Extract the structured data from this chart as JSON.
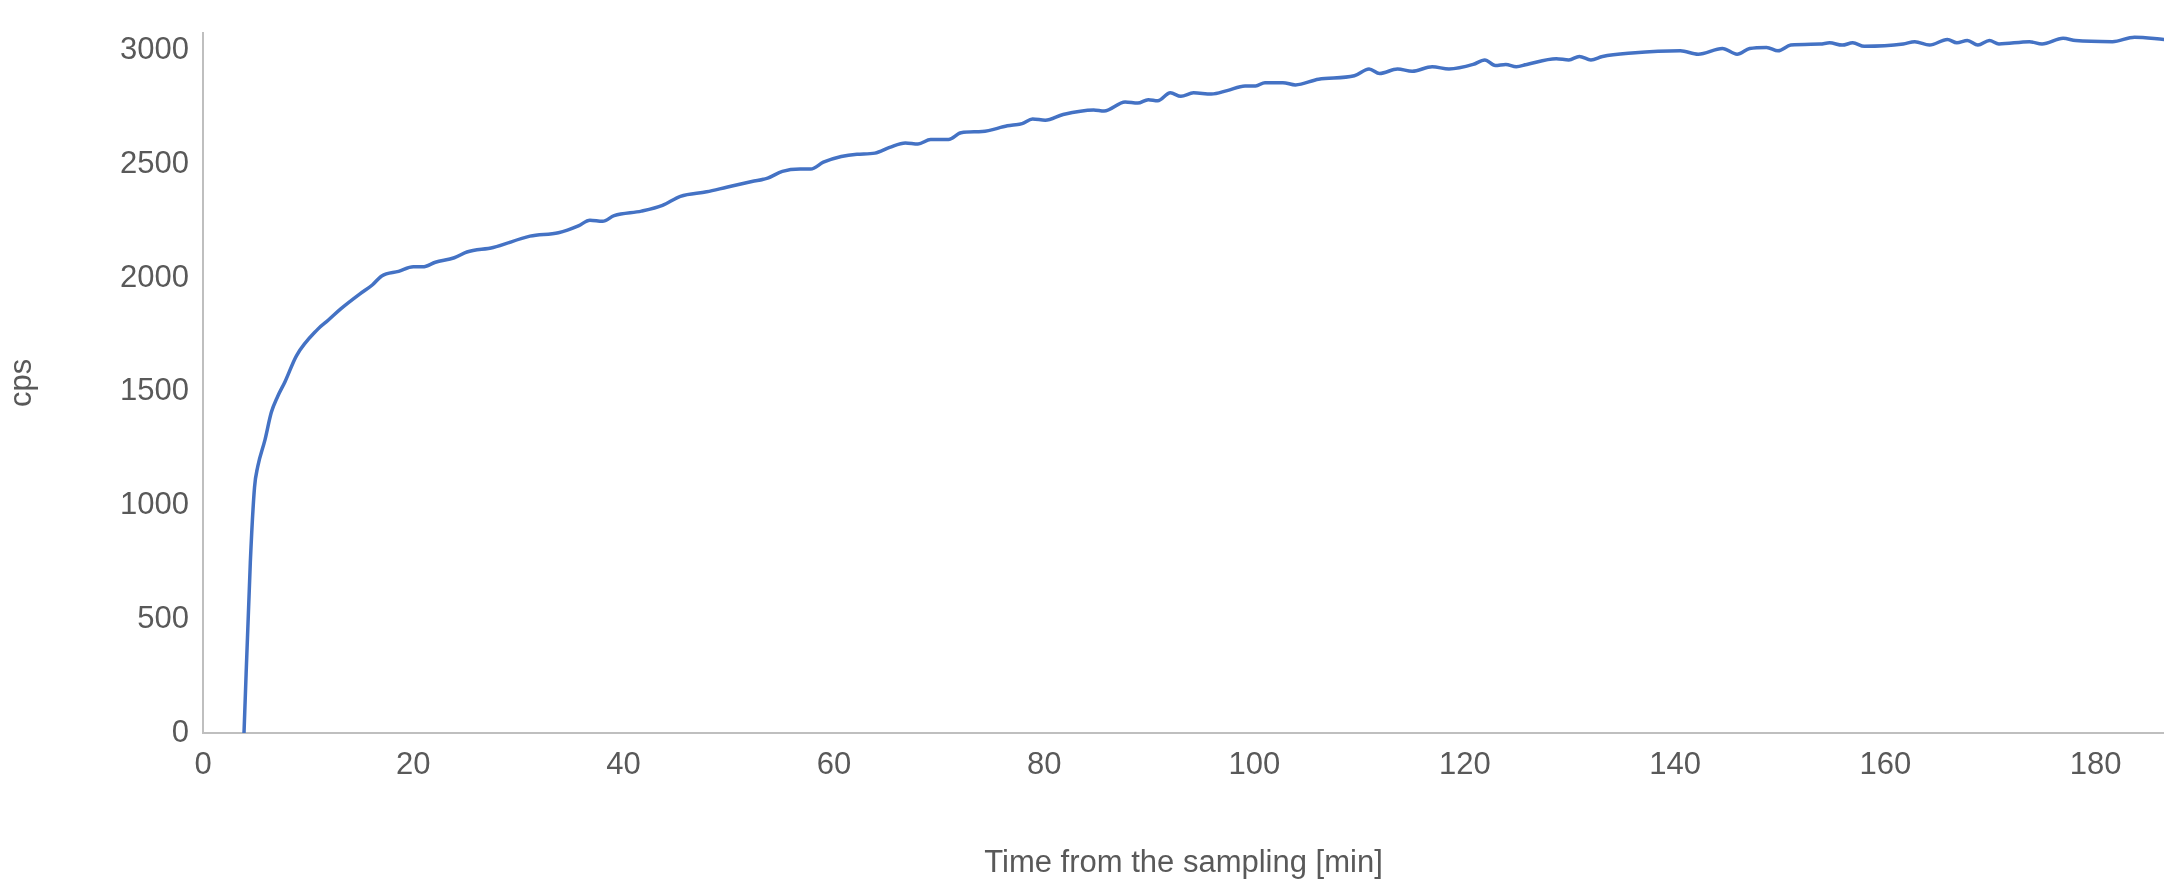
{
  "chart_data": {
    "type": "line",
    "xlabel": "Time from the sampling [min]",
    "ylabel": "cps",
    "xlim": [
      0,
      186.5
    ],
    "xticks": [
      0,
      20,
      40,
      60,
      80,
      100,
      120,
      140,
      160,
      180
    ],
    "ylim": [
      0,
      3080
    ],
    "yticks": [
      0,
      500,
      1000,
      1500,
      2000,
      2500,
      3000
    ],
    "grid": false,
    "legend": false,
    "marker": "none",
    "line_style": "solid",
    "series": [
      {
        "color": "#4472c4",
        "x": [
          3.9,
          4.5,
          4.9,
          5.2,
          5.9,
          6.5,
          7.1,
          7.8,
          8.9,
          10.9,
          11.9,
          13.1,
          14.9,
          16.1,
          17.0,
          18.6,
          20.0,
          20.9,
          22.1,
          23.9,
          25.1,
          27.6,
          31.1,
          33.8,
          35.7,
          36.8,
          38.0,
          39.1,
          41.7,
          43.7,
          45.4,
          47.9,
          49.8,
          52.2,
          53.7,
          55.1,
          56.8,
          57.8,
          59.0,
          60.7,
          62.2,
          63.9,
          65.3,
          66.8,
          68.0,
          69.2,
          70.9,
          72.1,
          74.1,
          76.5,
          77.9,
          78.9,
          80.1,
          81.8,
          84.7,
          85.7,
          87.7,
          88.9,
          89.9,
          90.8,
          92.0,
          93.0,
          94.2,
          95.9,
          97.4,
          99.1,
          100.1,
          101.0,
          102.7,
          103.9,
          106.1,
          109.5,
          110.9,
          111.9,
          113.6,
          115.0,
          116.9,
          118.5,
          120.8,
          121.9,
          122.9,
          123.9,
          124.9,
          125.9,
          128.7,
          129.9,
          130.9,
          132.0,
          133.1,
          135.9,
          140.5,
          142.2,
          144.5,
          145.9,
          147.1,
          148.7,
          149.8,
          151.0,
          153.8,
          154.7,
          155.9,
          156.9,
          158.0,
          161.7,
          162.8,
          164.2,
          165.9,
          166.8,
          167.8,
          168.8,
          169.9,
          170.8,
          173.7,
          174.9,
          176.9,
          178.1,
          181.6,
          183.7,
          186.5
        ],
        "values": [
          0,
          750,
          1080,
          1170,
          1290,
          1410,
          1480,
          1545,
          1660,
          1775,
          1815,
          1865,
          1930,
          1970,
          2010,
          2030,
          2050,
          2050,
          2070,
          2090,
          2115,
          2135,
          2185,
          2200,
          2230,
          2255,
          2250,
          2275,
          2295,
          2320,
          2360,
          2380,
          2400,
          2425,
          2440,
          2470,
          2480,
          2480,
          2510,
          2535,
          2545,
          2550,
          2575,
          2595,
          2590,
          2610,
          2610,
          2640,
          2645,
          2670,
          2680,
          2700,
          2695,
          2720,
          2740,
          2735,
          2775,
          2770,
          2785,
          2780,
          2815,
          2800,
          2815,
          2810,
          2825,
          2845,
          2845,
          2860,
          2860,
          2850,
          2875,
          2890,
          2920,
          2900,
          2920,
          2910,
          2930,
          2920,
          2940,
          2960,
          2935,
          2940,
          2930,
          2940,
          2965,
          2960,
          2975,
          2960,
          2975,
          2990,
          3000,
          2985,
          3010,
          2985,
          3010,
          3015,
          3000,
          3025,
          3030,
          3035,
          3025,
          3035,
          3020,
          3030,
          3040,
          3025,
          3050,
          3035,
          3045,
          3025,
          3045,
          3030,
          3040,
          3030,
          3055,
          3045,
          3040,
          3060,
          3050
        ]
      }
    ]
  }
}
